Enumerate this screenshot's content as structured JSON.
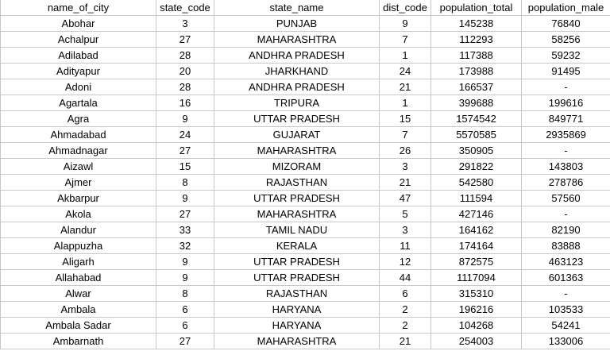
{
  "table": {
    "columns": [
      "name_of_city",
      "state_code",
      "state_name",
      "dist_code",
      "population_total",
      "population_male"
    ],
    "rows": [
      [
        "Abohar",
        "3",
        "PUNJAB",
        "9",
        "145238",
        "76840"
      ],
      [
        "Achalpur",
        "27",
        "MAHARASHTRA",
        "7",
        "112293",
        "58256"
      ],
      [
        "Adilabad",
        "28",
        "ANDHRA PRADESH",
        "1",
        "117388",
        "59232"
      ],
      [
        "Adityapur",
        "20",
        "JHARKHAND",
        "24",
        "173988",
        "91495"
      ],
      [
        "Adoni",
        "28",
        "ANDHRA PRADESH",
        "21",
        "166537",
        "-"
      ],
      [
        "Agartala",
        "16",
        "TRIPURA",
        "1",
        "399688",
        "199616"
      ],
      [
        "Agra",
        "9",
        "UTTAR PRADESH",
        "15",
        "1574542",
        "849771"
      ],
      [
        "Ahmadabad",
        "24",
        "GUJARAT",
        "7",
        "5570585",
        "2935869"
      ],
      [
        "Ahmadnagar",
        "27",
        "MAHARASHTRA",
        "26",
        "350905",
        "-"
      ],
      [
        "Aizawl",
        "15",
        "MIZORAM",
        "3",
        "291822",
        "143803"
      ],
      [
        "Ajmer",
        "8",
        "RAJASTHAN",
        "21",
        "542580",
        "278786"
      ],
      [
        "Akbarpur",
        "9",
        "UTTAR PRADESH",
        "47",
        "111594",
        "57560"
      ],
      [
        "Akola",
        "27",
        "MAHARASHTRA",
        "5",
        "427146",
        "-"
      ],
      [
        "Alandur",
        "33",
        "TAMIL NADU",
        "3",
        "164162",
        "82190"
      ],
      [
        "Alappuzha",
        "32",
        "KERALA",
        "11",
        "174164",
        "83888"
      ],
      [
        "Aligarh",
        "9",
        "UTTAR PRADESH",
        "12",
        "872575",
        "463123"
      ],
      [
        "Allahabad",
        "9",
        "UTTAR PRADESH",
        "44",
        "1117094",
        "601363"
      ],
      [
        "Alwar",
        "8",
        "RAJASTHAN",
        "6",
        "315310",
        "-"
      ],
      [
        "Ambala",
        "6",
        "HARYANA",
        "2",
        "196216",
        "103533"
      ],
      [
        "Ambala Sadar",
        "6",
        "HARYANA",
        "2",
        "104268",
        "54241"
      ],
      [
        "Ambarnath",
        "27",
        "MAHARASHTRA",
        "21",
        "254003",
        "133006"
      ]
    ]
  },
  "colors": {
    "gridline": "#c9c9c9",
    "selection": "#1f7a3a"
  }
}
